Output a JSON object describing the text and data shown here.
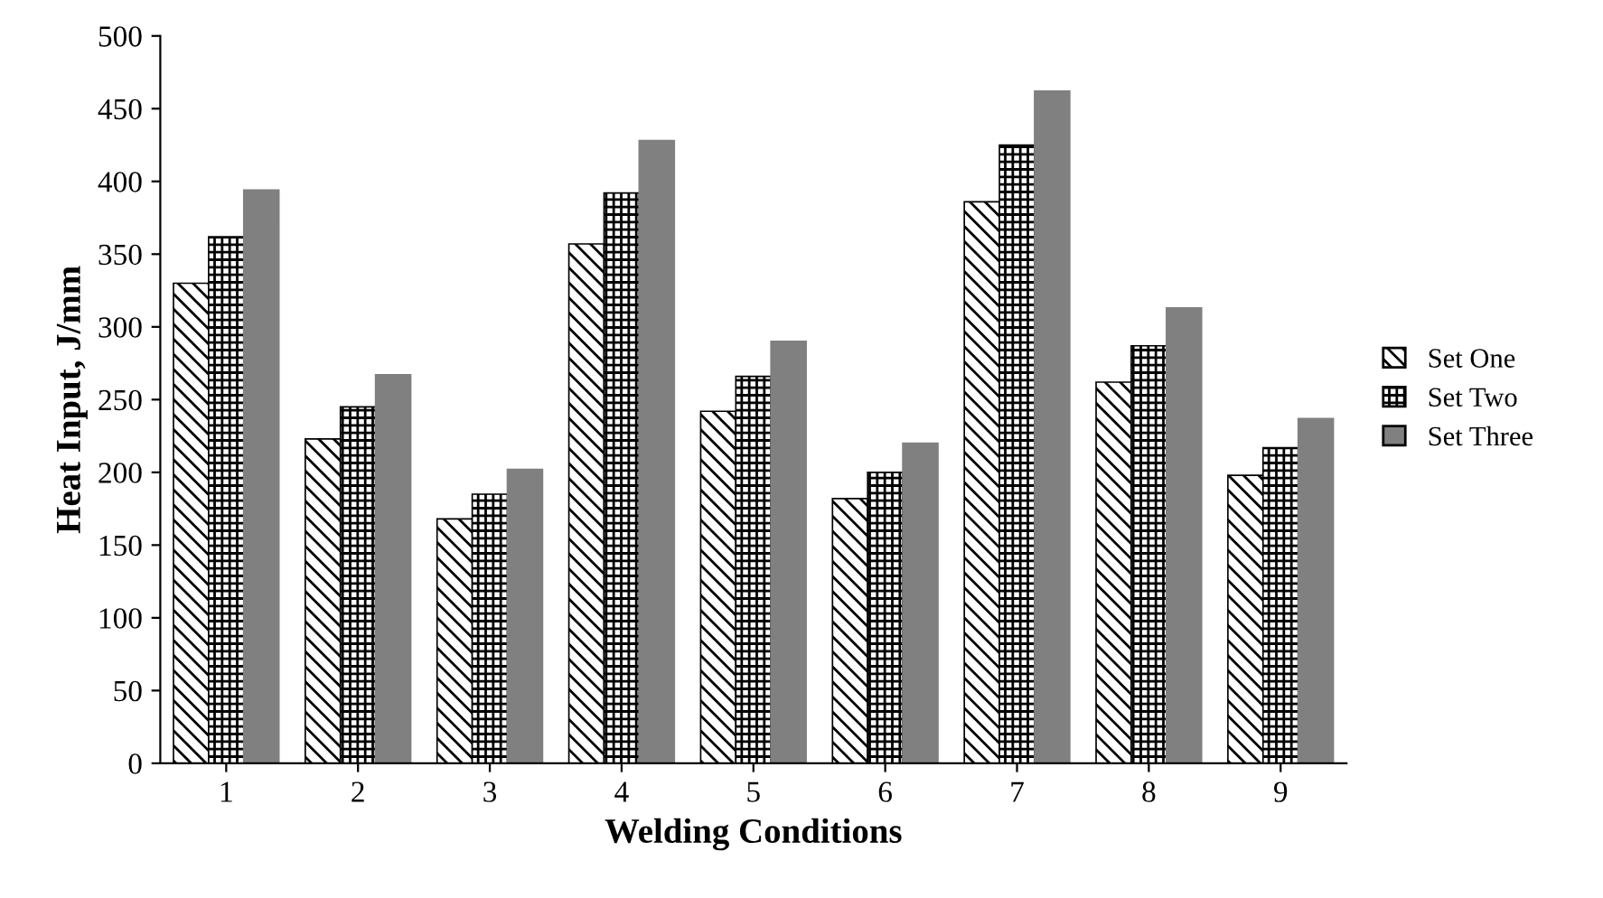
{
  "chart_data": {
    "type": "bar",
    "xlabel": "Welding Conditions",
    "ylabel": "Heat Input, J/mm",
    "categories": [
      "1",
      "2",
      "3",
      "4",
      "5",
      "6",
      "7",
      "8",
      "9"
    ],
    "series": [
      {
        "name": "Set One",
        "color": "#000000",
        "values": [
          330,
          223,
          168,
          357,
          242,
          182,
          386,
          262,
          198
        ]
      },
      {
        "name": "Set Two",
        "color": "#000000",
        "values": [
          362,
          245,
          185,
          392,
          266,
          200,
          425,
          287,
          217
        ]
      },
      {
        "name": "Set Three",
        "color": "#808080",
        "values": [
          394,
          267,
          202,
          428,
          290,
          220,
          462,
          313,
          237
        ]
      }
    ],
    "ylim": [
      0,
      500
    ],
    "yticks": [
      0,
      50,
      100,
      150,
      200,
      250,
      300,
      350,
      400,
      450,
      500
    ],
    "grid": false,
    "legend": "right"
  }
}
